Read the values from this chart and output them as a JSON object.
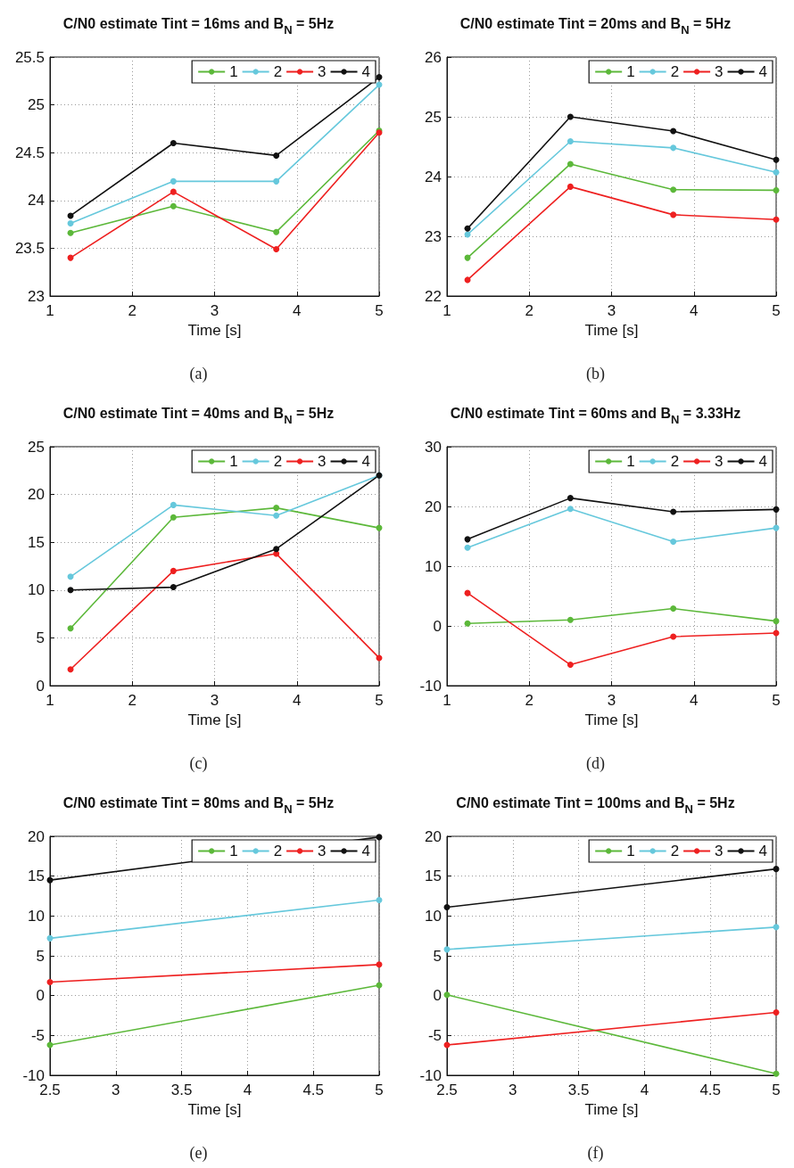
{
  "chart_data": [
    {
      "type": "line",
      "title": "C/N0 estimate Tint = 16ms and B$_{N}$ = 5Hz",
      "xlabel": "Time [s]",
      "x": [
        1.25,
        2.5,
        3.75,
        5
      ],
      "series": [
        {
          "name": "1",
          "color": "#5cb83a",
          "values": [
            23.66,
            23.94,
            23.67,
            24.73
          ]
        },
        {
          "name": "2",
          "color": "#66c8dc",
          "values": [
            23.76,
            24.2,
            24.2,
            25.21
          ]
        },
        {
          "name": "3",
          "color": "#ee2020",
          "values": [
            23.4,
            24.09,
            23.49,
            24.71
          ]
        },
        {
          "name": "4",
          "color": "#111111",
          "values": [
            23.84,
            24.6,
            24.47,
            25.29
          ]
        }
      ],
      "xlim": [
        1,
        5
      ],
      "xticks": [
        1,
        2,
        3,
        4,
        5
      ],
      "ylim": [
        23,
        25.5
      ],
      "yticks": [
        23,
        23.5,
        24,
        24.5,
        25,
        25.5
      ],
      "grid": true,
      "legend": "top right",
      "marker": "circle",
      "line_style": "solid",
      "annotations": [
        "(a)"
      ]
    },
    {
      "type": "line",
      "title": "C/N0 estimate Tint = 20ms and B$_{N}$ = 5Hz",
      "xlabel": "Time [s]",
      "x": [
        1.25,
        2.5,
        3.75,
        5
      ],
      "series": [
        {
          "name": "1",
          "color": "#5cb83a",
          "values": [
            22.64,
            24.21,
            23.78,
            23.77
          ]
        },
        {
          "name": "2",
          "color": "#66c8dc",
          "values": [
            23.03,
            24.59,
            24.48,
            24.07
          ]
        },
        {
          "name": "3",
          "color": "#ee2020",
          "values": [
            22.27,
            23.83,
            23.36,
            23.28
          ]
        },
        {
          "name": "4",
          "color": "#111111",
          "values": [
            23.13,
            25.0,
            24.76,
            24.28
          ]
        }
      ],
      "xlim": [
        1,
        5
      ],
      "xticks": [
        1,
        2,
        3,
        4,
        5
      ],
      "ylim": [
        22,
        26
      ],
      "yticks": [
        22,
        23,
        24,
        25,
        26
      ],
      "grid": true,
      "legend": "top right",
      "marker": "circle",
      "line_style": "solid",
      "annotations": [
        "(b)"
      ]
    },
    {
      "type": "line",
      "title": "C/N0 estimate Tint = 40ms and B$_{N}$ = 5Hz",
      "xlabel": "Time [s]",
      "x": [
        1.25,
        2.5,
        3.75,
        5
      ],
      "series": [
        {
          "name": "1",
          "color": "#5cb83a",
          "values": [
            6.0,
            17.6,
            18.6,
            16.5
          ]
        },
        {
          "name": "2",
          "color": "#66c8dc",
          "values": [
            11.4,
            18.9,
            17.8,
            22.0
          ]
        },
        {
          "name": "3",
          "color": "#ee2020",
          "values": [
            1.7,
            12.0,
            13.8,
            2.9
          ]
        },
        {
          "name": "4",
          "color": "#111111",
          "values": [
            10.0,
            10.3,
            14.3,
            22.0
          ]
        }
      ],
      "xlim": [
        1,
        5
      ],
      "xticks": [
        1,
        2,
        3,
        4,
        5
      ],
      "ylim": [
        0,
        25
      ],
      "yticks": [
        0,
        5,
        10,
        15,
        20,
        25
      ],
      "grid": true,
      "legend": "top right",
      "marker": "circle",
      "line_style": "solid",
      "annotations": [
        "(c)"
      ]
    },
    {
      "type": "line",
      "title": "C/N0 estimate Tint = 60ms and B$_{N}$ = 3.33Hz",
      "xlabel": "Time [s]",
      "x": [
        1.25,
        2.5,
        3.75,
        5
      ],
      "series": [
        {
          "name": "1",
          "color": "#5cb83a",
          "values": [
            0.4,
            1.0,
            2.9,
            0.8
          ]
        },
        {
          "name": "2",
          "color": "#66c8dc",
          "values": [
            13.1,
            19.6,
            14.1,
            16.4
          ]
        },
        {
          "name": "3",
          "color": "#ee2020",
          "values": [
            5.5,
            -6.5,
            -1.8,
            -1.2
          ]
        },
        {
          "name": "4",
          "color": "#111111",
          "values": [
            14.5,
            21.4,
            19.1,
            19.5
          ]
        }
      ],
      "xlim": [
        1,
        5
      ],
      "xticks": [
        1,
        2,
        3,
        4,
        5
      ],
      "ylim": [
        -10,
        30
      ],
      "yticks": [
        -10,
        0,
        10,
        20,
        30
      ],
      "grid": true,
      "legend": "top right",
      "marker": "circle",
      "line_style": "solid",
      "annotations": [
        "(d)"
      ]
    },
    {
      "type": "line",
      "title": "C/N0 estimate Tint = 80ms and B$_{N}$ = 5Hz",
      "xlabel": "Time [s]",
      "x": [
        2.5,
        5
      ],
      "series": [
        {
          "name": "1",
          "color": "#5cb83a",
          "values": [
            -6.2,
            1.3
          ]
        },
        {
          "name": "2",
          "color": "#66c8dc",
          "values": [
            7.2,
            12.0
          ]
        },
        {
          "name": "3",
          "color": "#ee2020",
          "values": [
            1.7,
            3.9
          ]
        },
        {
          "name": "4",
          "color": "#111111",
          "values": [
            14.5,
            19.9
          ]
        }
      ],
      "xlim": [
        2.5,
        5
      ],
      "xticks": [
        2.5,
        3,
        3.5,
        4,
        4.5,
        5
      ],
      "ylim": [
        -10,
        20
      ],
      "yticks": [
        -10,
        -5,
        0,
        5,
        10,
        15,
        20
      ],
      "grid": true,
      "legend": "top right",
      "marker": "circle",
      "line_style": "solid",
      "annotations": [
        "(e)"
      ]
    },
    {
      "type": "line",
      "title": "C/N0 estimate Tint = 100ms and B$_{N}$ = 5Hz",
      "xlabel": "Time [s]",
      "x": [
        2.5,
        5
      ],
      "series": [
        {
          "name": "1",
          "color": "#5cb83a",
          "values": [
            0.1,
            -9.8
          ]
        },
        {
          "name": "2",
          "color": "#66c8dc",
          "values": [
            5.8,
            8.6
          ]
        },
        {
          "name": "3",
          "color": "#ee2020",
          "values": [
            -6.2,
            -2.1
          ]
        },
        {
          "name": "4",
          "color": "#111111",
          "values": [
            11.1,
            15.9
          ]
        }
      ],
      "xlim": [
        2.5,
        5
      ],
      "xticks": [
        2.5,
        3,
        3.5,
        4,
        4.5,
        5
      ],
      "ylim": [
        -10,
        20
      ],
      "yticks": [
        -10,
        -5,
        0,
        5,
        10,
        15,
        20
      ],
      "grid": true,
      "legend": "top right",
      "marker": "circle",
      "line_style": "solid",
      "annotations": [
        "(f)"
      ]
    }
  ]
}
